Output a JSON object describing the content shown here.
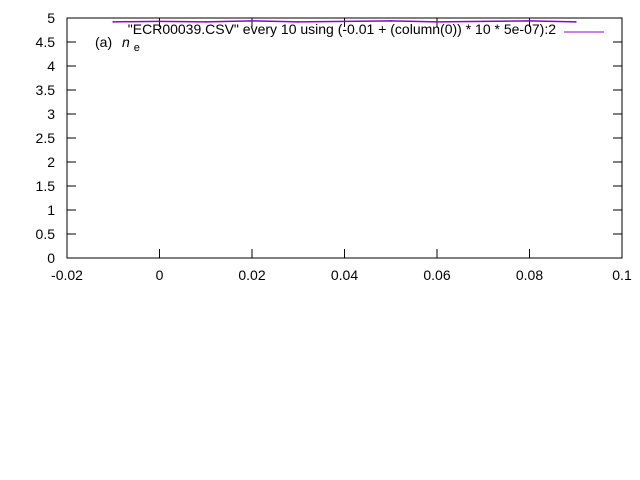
{
  "chart_data": {
    "type": "line",
    "title": "",
    "xlabel": "",
    "ylabel": "",
    "xlim": [
      -0.02,
      0.1
    ],
    "ylim": [
      0,
      5
    ],
    "x_ticks": [
      "-0.02",
      "0",
      "0.02",
      "0.04",
      "0.06",
      "0.08",
      "0.1"
    ],
    "y_ticks": [
      "0",
      "0.5",
      "1",
      "1.5",
      "2",
      "2.5",
      "3",
      "3.5",
      "4",
      "4.5",
      "5"
    ],
    "grid": false,
    "legend_position": "top-right",
    "legend": [
      "\"ECR00039.CSV\" every 10 using (-0.01 + (column(0)) * 10 * 5e-07):2"
    ],
    "annotation": {
      "prefix": "(a)",
      "symbol": "n",
      "subscript": "e"
    },
    "series": [
      {
        "name": "\"ECR00039.CSV\" every 10 using (-0.01 + (column(0)) * 10 * 5e-07):2",
        "color": "#9400d3",
        "x": [
          -0.01,
          0.0,
          0.01,
          0.02,
          0.03,
          0.04,
          0.05,
          0.06,
          0.07,
          0.08,
          0.09
        ],
        "y": [
          4.92,
          4.93,
          4.92,
          4.94,
          4.92,
          4.93,
          4.94,
          4.92,
          4.93,
          4.94,
          4.92
        ]
      }
    ]
  }
}
